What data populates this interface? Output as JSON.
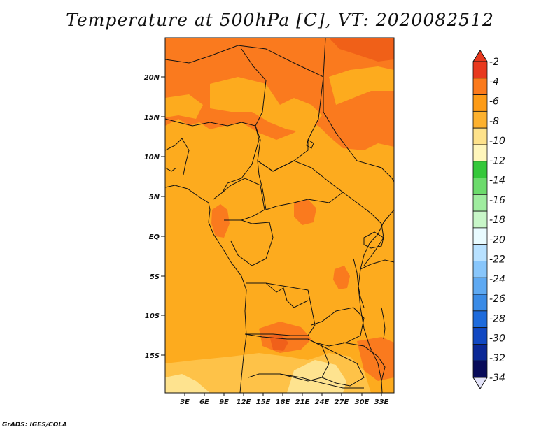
{
  "title": "Temperature at 500hPa [C], VT: 2020082512",
  "credit": "GrADS: IGES/COLA",
  "map": {
    "lat_ticks": [
      "20N",
      "15N",
      "10N",
      "5N",
      "EQ",
      "5S",
      "10S",
      "15S"
    ],
    "lon_ticks": [
      "3E",
      "6E",
      "9E",
      "12E",
      "15E",
      "18E",
      "21E",
      "24E",
      "27E",
      "30E",
      "33E"
    ],
    "lat_range": [
      -20,
      24.5
    ],
    "lon_range": [
      0,
      35
    ],
    "field_colors": {
      "-2_to_-4": "#fa7a1e",
      "-4_to_-6": "#fdab1e",
      "-6_to_-8": "#fec248",
      "-8_to_-10": "#fee38f"
    }
  },
  "colorbar": {
    "labels": [
      "-2",
      "-4",
      "-6",
      "-8",
      "-10",
      "-12",
      "-14",
      "-16",
      "-18",
      "-20",
      "-22",
      "-24",
      "-26",
      "-28",
      "-30",
      "-32",
      "-34"
    ],
    "colors": [
      "#e8391e",
      "#fb7a1c",
      "#fd9b16",
      "#fdb12e",
      "#fee28b",
      "#fff6bb",
      "#35c83a",
      "#6cdb6c",
      "#9fec9f",
      "#c8f6c8",
      "#e9fbff",
      "#b8e1ff",
      "#88c6fb",
      "#5ea9f2",
      "#3a8be6",
      "#1e6bdc",
      "#1148c2",
      "#0b2896",
      "#090c5a"
    ],
    "top_arrow_color": "#e8391e",
    "bottom_arrow_color": "#e4e4f9"
  }
}
